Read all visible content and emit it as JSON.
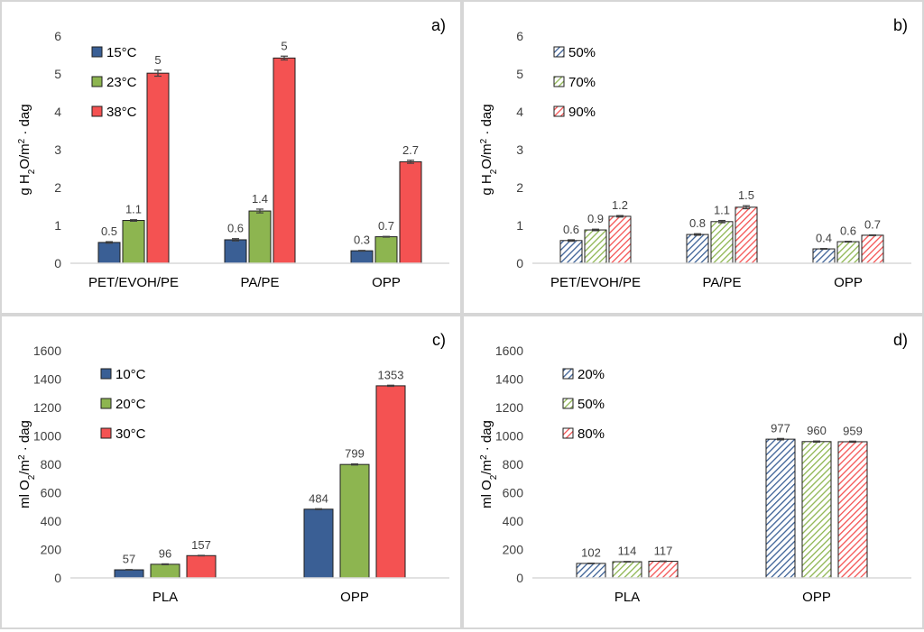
{
  "chart_data": [
    {
      "id": "a",
      "type": "bar",
      "panel_label": "a)",
      "ylabel_parts": [
        "g H",
        "2",
        "O/m",
        "2",
        " · dag"
      ],
      "ylim": [
        0,
        6
      ],
      "yticks": [
        0,
        1,
        2,
        3,
        4,
        5,
        6
      ],
      "categories": [
        "PET/EVOH/PE",
        "PA/PE",
        "OPP"
      ],
      "pattern": "solid",
      "legend_position": "top-left",
      "series": [
        {
          "name": "15°C",
          "color": "#3a5f95",
          "values": [
            0.55,
            0.62,
            0.33
          ],
          "labels": [
            "0.5",
            "0.6",
            "0.3"
          ],
          "errors": [
            0.02,
            0.03,
            0.01
          ]
        },
        {
          "name": "23°C",
          "color": "#8db550",
          "values": [
            1.13,
            1.38,
            0.7
          ],
          "labels": [
            "1.1",
            "1.4",
            "0.7"
          ],
          "errors": [
            0.02,
            0.05,
            0.01
          ]
        },
        {
          "name": "38°C",
          "color": "#f45252",
          "values": [
            5.02,
            5.42,
            2.68
          ],
          "labels": [
            "5",
            "5",
            "2.7"
          ],
          "errors": [
            0.08,
            0.05,
            0.04
          ]
        }
      ]
    },
    {
      "id": "b",
      "type": "bar",
      "panel_label": "b)",
      "ylabel_parts": [
        "g H",
        "2",
        "O/m",
        "2",
        " · dag"
      ],
      "ylim": [
        0,
        6
      ],
      "yticks": [
        0,
        1,
        2,
        3,
        4,
        5,
        6
      ],
      "categories": [
        "PET/EVOH/PE",
        "PA/PE",
        "OPP"
      ],
      "pattern": "hatched",
      "legend_position": "top-left",
      "series": [
        {
          "name": "50%",
          "color": "#3a5f95",
          "values": [
            0.6,
            0.76,
            0.38
          ],
          "labels": [
            "0.6",
            "0.8",
            "0.4"
          ],
          "errors": [
            0.02,
            0.02,
            0.01
          ]
        },
        {
          "name": "70%",
          "color": "#8db550",
          "values": [
            0.88,
            1.1,
            0.57
          ],
          "labels": [
            "0.9",
            "1.1",
            "0.6"
          ],
          "errors": [
            0.02,
            0.03,
            0.01
          ]
        },
        {
          "name": "90%",
          "color": "#f45252",
          "values": [
            1.24,
            1.48,
            0.74
          ],
          "labels": [
            "1.2",
            "1.5",
            "0.7"
          ],
          "errors": [
            0.02,
            0.04,
            0.01
          ]
        }
      ]
    },
    {
      "id": "c",
      "type": "bar",
      "panel_label": "c)",
      "ylabel_parts": [
        "ml O",
        "2",
        "/m",
        "2",
        " · dag"
      ],
      "ylim": [
        0,
        1600
      ],
      "yticks": [
        0,
        200,
        400,
        600,
        800,
        1000,
        1200,
        1400,
        1600
      ],
      "categories": [
        "PLA",
        "OPP"
      ],
      "pattern": "solid",
      "legend_position": "top-left",
      "series": [
        {
          "name": "10°C",
          "color": "#3a5f95",
          "values": [
            57,
            484
          ],
          "labels": [
            "57",
            "484"
          ],
          "errors": [
            2,
            3
          ]
        },
        {
          "name": "20°C",
          "color": "#8db550",
          "values": [
            96,
            799
          ],
          "labels": [
            "96",
            "799"
          ],
          "errors": [
            3,
            4
          ]
        },
        {
          "name": "30°C",
          "color": "#f45252",
          "values": [
            157,
            1353
          ],
          "labels": [
            "157",
            "1353"
          ],
          "errors": [
            2,
            4
          ]
        }
      ]
    },
    {
      "id": "d",
      "type": "bar",
      "panel_label": "d)",
      "ylabel_parts": [
        "ml O",
        "2",
        "/m",
        "2",
        " · dag"
      ],
      "ylim": [
        0,
        1600
      ],
      "yticks": [
        0,
        200,
        400,
        600,
        800,
        1000,
        1200,
        1400,
        1600
      ],
      "categories": [
        "PLA",
        "OPP"
      ],
      "pattern": "hatched",
      "legend_position": "top-left",
      "series": [
        {
          "name": "20%",
          "color": "#3a5f95",
          "values": [
            102,
            977
          ],
          "labels": [
            "102",
            "977"
          ],
          "errors": [
            2,
            5
          ]
        },
        {
          "name": "50%",
          "color": "#8db550",
          "values": [
            114,
            960
          ],
          "labels": [
            "114",
            "960"
          ],
          "errors": [
            2,
            4
          ]
        },
        {
          "name": "80%",
          "color": "#f45252",
          "values": [
            117,
            959
          ],
          "labels": [
            "117",
            "959"
          ],
          "errors": [
            2,
            4
          ]
        }
      ]
    }
  ]
}
